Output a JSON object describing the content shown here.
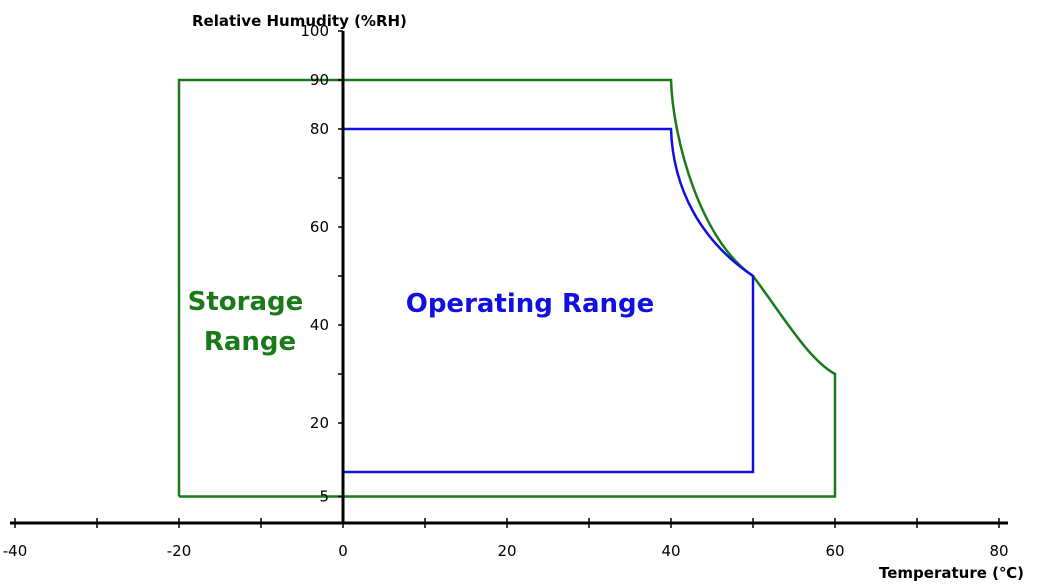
{
  "chart_data": {
    "type": "area",
    "title": "",
    "xlabel": "Temperature (℃)",
    "ylabel": "Relative Humudity (%RH)",
    "xlim": [
      -40,
      80
    ],
    "ylim": [
      5,
      100
    ],
    "x_ticks": [
      -40,
      -20,
      0,
      20,
      40,
      60,
      80
    ],
    "y_ticks": [
      5,
      20,
      40,
      60,
      80,
      90,
      100
    ],
    "grid": false,
    "series": [
      {
        "name": "Storage Range",
        "color": "#1a7a1a",
        "points": [
          [
            -20,
            5
          ],
          [
            -20,
            90
          ],
          [
            40,
            90
          ],
          [
            50,
            50
          ],
          [
            60,
            30
          ],
          [
            60,
            5
          ],
          [
            -20,
            5
          ]
        ]
      },
      {
        "name": "Operating Range",
        "color": "#1010e0",
        "points": [
          [
            0,
            10
          ],
          [
            0,
            80
          ],
          [
            40,
            80
          ],
          [
            50,
            50
          ],
          [
            50,
            10
          ],
          [
            0,
            10
          ]
        ]
      }
    ],
    "annotations": [
      {
        "text_lines": [
          "Storage",
          "Range"
        ],
        "color": "#1a7a1a"
      },
      {
        "text_lines": [
          "Operating Range"
        ],
        "color": "#1010e0"
      }
    ]
  }
}
